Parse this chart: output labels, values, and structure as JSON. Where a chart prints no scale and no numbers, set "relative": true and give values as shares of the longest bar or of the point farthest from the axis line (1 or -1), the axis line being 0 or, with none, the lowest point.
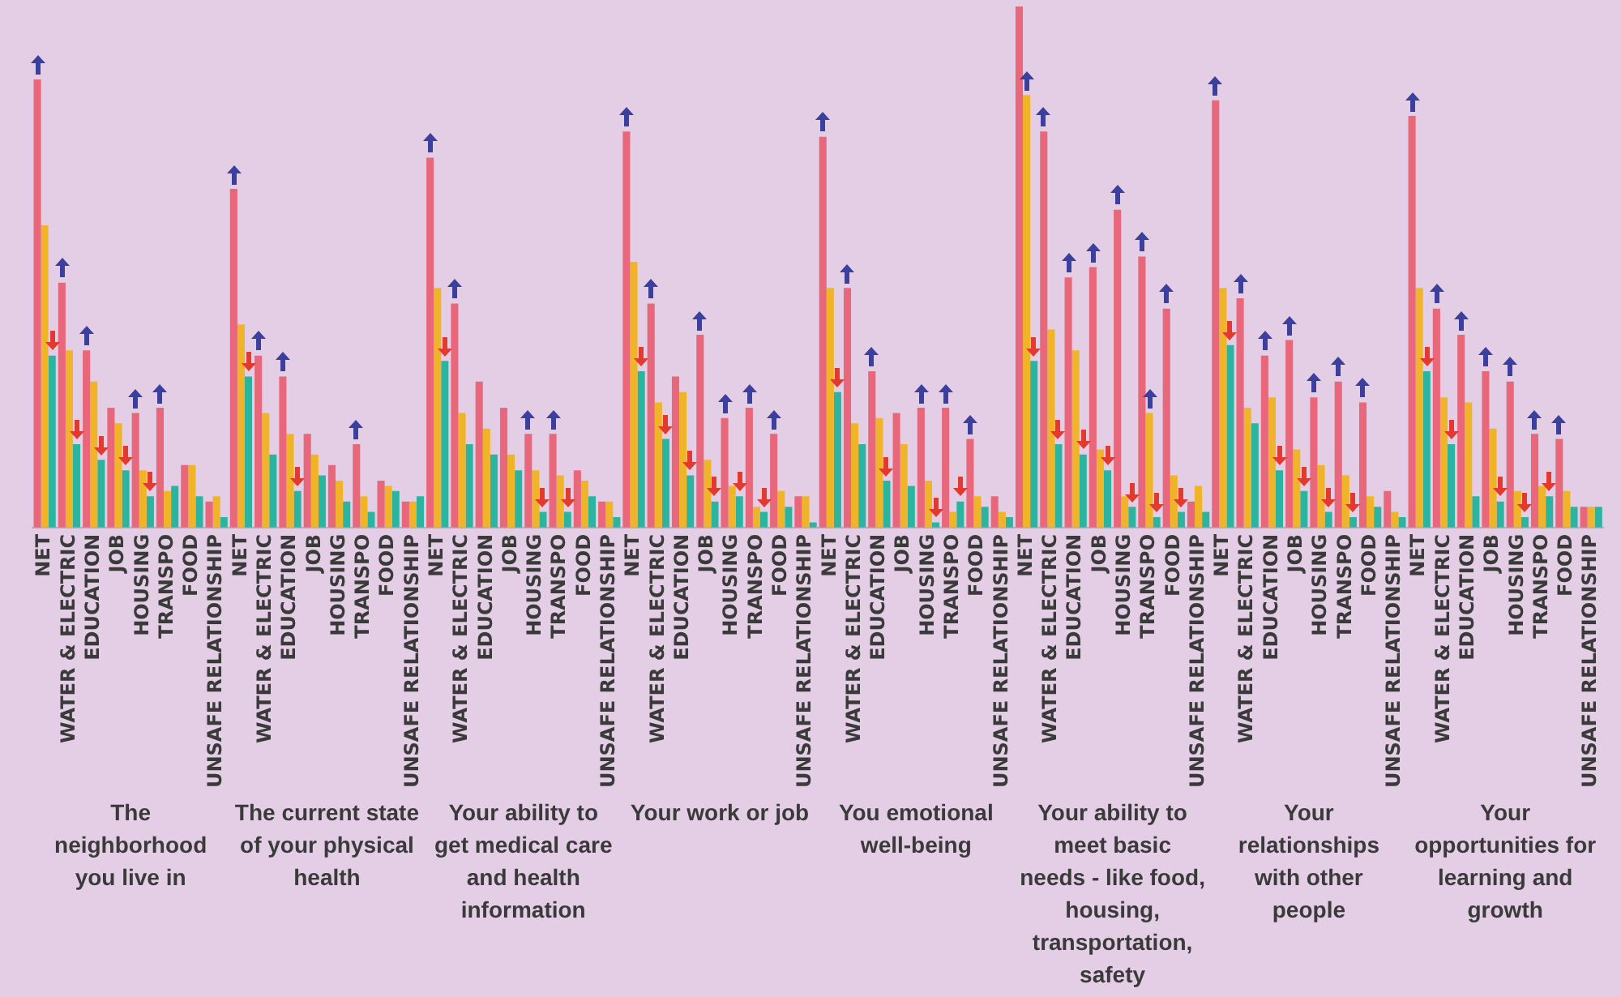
{
  "chart_data": {
    "type": "bar",
    "relative": true,
    "legend": false,
    "categories": [
      "NET",
      "WATER & ELECTRIC",
      "EDUCATION",
      "JOB",
      "HOUSING",
      "TRANSPO",
      "FOOD",
      "UNSAFE RELATIONSHIP",
      "NET",
      "WATER & ELECTRIC",
      "EDUCATION",
      "JOB",
      "HOUSING",
      "TRANSPO",
      "FOOD",
      "UNSAFE RELATIONSHIP",
      "NET",
      "WATER & ELECTRIC",
      "EDUCATION",
      "JOB",
      "HOUSING",
      "TRANSPO",
      "FOOD",
      "UNSAFE RELATIONSHIP",
      "NET",
      "WATER & ELECTRIC",
      "EDUCATION",
      "JOB",
      "HOUSING",
      "TRANSPO",
      "FOOD",
      "UNSAFE RELATIONSHIP",
      "NET",
      "WATER & ELECTRIC",
      "EDUCATION",
      "JOB",
      "HOUSING",
      "TRANSPO",
      "FOOD",
      "UNSAFE RELATIONSHIP",
      "NET",
      "WATER & ELECTRIC",
      "EDUCATION",
      "JOB",
      "HOUSING",
      "TRANSPO",
      "FOOD",
      "UNSAFE RELATIONSHIP",
      "NET",
      "WATER & ELECTRIC",
      "EDUCATION",
      "JOB",
      "HOUSING",
      "TRANSPO",
      "FOOD",
      "UNSAFE RELATIONSHIP",
      "NET",
      "WATER & ELECTRIC",
      "EDUCATION",
      "JOB",
      "HOUSING",
      "TRANSPO",
      "FOOD",
      "UNSAFE RELATIONSHIP"
    ],
    "series": [
      {
        "color": "#e8677a",
        "values": [
          0.86,
          0.47,
          0.34,
          0.23,
          0.22,
          0.23,
          0.12,
          0.05,
          0.65,
          0.33,
          0.29,
          0.18,
          0.12,
          0.16,
          0.09,
          0.05,
          0.71,
          0.43,
          0.28,
          0.23,
          0.18,
          0.18,
          0.11,
          0.05,
          0.76,
          0.43,
          0.29,
          0.37,
          0.21,
          0.23,
          0.18,
          0.06,
          0.75,
          0.46,
          0.3,
          0.22,
          0.23,
          0.23,
          0.17,
          0.06,
          1,
          0.76,
          0.48,
          0.5,
          0.61,
          0.52,
          0.42,
          0.05,
          0.82,
          0.44,
          0.33,
          0.36,
          0.25,
          0.28,
          0.24,
          0.07,
          0.79,
          0.42,
          0.37,
          0.3,
          0.28,
          0.18,
          0.17,
          0.04
        ]
      },
      {
        "color": "#f0b429",
        "values": [
          0.58,
          0.34,
          0.28,
          0.2,
          0.11,
          0.07,
          0.12,
          0.06,
          0.39,
          0.22,
          0.18,
          0.14,
          0.09,
          0.06,
          0.08,
          0.05,
          0.46,
          0.22,
          0.19,
          0.14,
          0.11,
          0.1,
          0.09,
          0.05,
          0.51,
          0.24,
          0.26,
          0.13,
          0.08,
          0.04,
          0.07,
          0.06,
          0.46,
          0.2,
          0.21,
          0.16,
          0.09,
          0.03,
          0.06,
          0.03,
          0.83,
          0.38,
          0.34,
          0.15,
          0.06,
          0.22,
          0.1,
          0.08,
          0.46,
          0.23,
          0.25,
          0.15,
          0.12,
          0.1,
          0.06,
          0.03,
          0.46,
          0.25,
          0.24,
          0.19,
          0.07,
          0.08,
          0.07,
          0.04
        ]
      },
      {
        "color": "#2bb5a0",
        "values": [
          0.33,
          0.16,
          0.13,
          0.11,
          0.06,
          0.08,
          0.06,
          0.02,
          0.29,
          0.14,
          0.07,
          0.1,
          0.05,
          0.03,
          0.07,
          0.06,
          0.32,
          0.16,
          0.14,
          0.11,
          0.03,
          0.03,
          0.06,
          0.02,
          0.3,
          0.17,
          0.1,
          0.05,
          0.06,
          0.03,
          0.04,
          0.01,
          0.26,
          0.16,
          0.09,
          0.08,
          0.01,
          0.05,
          0.04,
          0.02,
          0.32,
          0.16,
          0.14,
          0.11,
          0.04,
          0.02,
          0.03,
          0.03,
          0.35,
          0.2,
          0.11,
          0.07,
          0.03,
          0.02,
          0.04,
          0.02,
          0.3,
          0.16,
          0.06,
          0.05,
          0.02,
          0.06,
          0.04,
          0.04
        ]
      }
    ],
    "annotations": [
      "The neighborhood you live in",
      "The current state of your physical health",
      "Your ability to get medical care and health information",
      "Your work or job",
      "You emotional well-being",
      "Your ability to meet basic needs - like food, housing, transportation, safety",
      "Your relationships with other people",
      "Your opportunities for learning and growth"
    ]
  }
}
